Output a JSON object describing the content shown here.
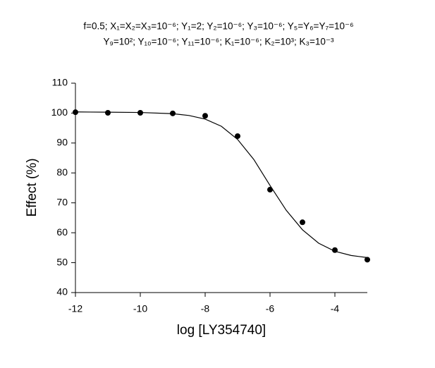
{
  "chart_data": {
    "type": "scatter",
    "title": [
      "f=0.5; X₁=X₂=X₃=10⁻⁶; Y₁=2; Y₂=10⁻⁶; Y₃=10⁻⁶; Y₅=Y₆=Y₇=10⁻⁶",
      "Y₉=10²; Y₁₀=10⁻⁶; Y₁₁=10⁻⁶; K₁=10⁻⁶; K₂=10³; K₃=10⁻³"
    ],
    "x_label": "log [LY354740]",
    "y_label": "Effect (%)",
    "xlim": [
      -12,
      -3
    ],
    "ylim": [
      40,
      110
    ],
    "xticks": [
      -12,
      -10,
      -8,
      -6,
      -4
    ],
    "yticks": [
      40,
      50,
      60,
      70,
      80,
      90,
      100,
      110
    ],
    "series": [
      {
        "style": "markers",
        "color": "#000000",
        "x": [
          -12,
          -11,
          -10,
          -9,
          -8,
          -7,
          -6,
          -5,
          -4,
          -3
        ],
        "values": [
          100.3,
          100.1,
          100.1,
          99.9,
          99.1,
          92.3,
          74.4,
          63.5,
          54.2,
          51.0
        ]
      },
      {
        "style": "line",
        "color": "#000000",
        "x": [
          -12,
          -11,
          -10,
          -9,
          -8.5,
          -8,
          -7.5,
          -7,
          -6.5,
          -6,
          -5.5,
          -5,
          -4.5,
          -4,
          -3.5,
          -3
        ],
        "values": [
          100.4,
          100.3,
          100.2,
          99.8,
          99.2,
          98.0,
          95.6,
          91.2,
          84.5,
          75.8,
          67.5,
          61.0,
          56.5,
          53.8,
          52.4,
          51.7
        ]
      }
    ]
  }
}
